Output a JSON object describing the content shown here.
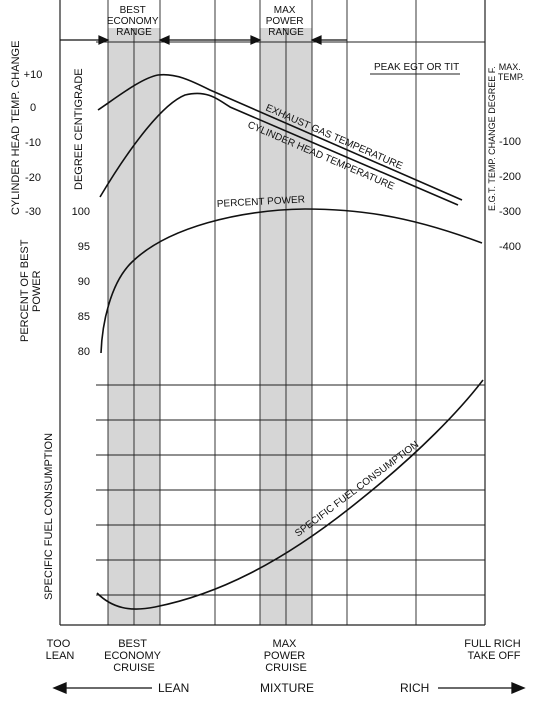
{
  "bands": {
    "economy_label": [
      "BEST",
      "ECONOMY",
      "RANGE"
    ],
    "power_label": [
      "MAX",
      "POWER",
      "RANGE"
    ]
  },
  "left_axis": {
    "cht_label": "CYLINDER HEAD TEMP. CHANGE",
    "cht_ticks": [
      "+10",
      "0",
      "-10",
      "-20",
      "-30"
    ],
    "degree_label": "DEGREE CENTIGRADE",
    "power_label_lines": [
      "PERCENT OF BEST",
      "POWER"
    ],
    "power_ticks": [
      "100",
      "95",
      "90",
      "85",
      "80"
    ],
    "sfc_label": "SPECIFIC FUEL CONSUMPTION"
  },
  "right_axis": {
    "max_temp_lines": [
      "MAX.",
      "TEMP."
    ],
    "egt_ticks": [
      "-100",
      "-200",
      "-300",
      "-400"
    ],
    "egt_label": "E.G.T. TEMP. CHANGE DEGREE F."
  },
  "curve_labels": {
    "peak": "PEAK EGT OR TIT",
    "egt": "EXHAUST GAS TEMPERATURE",
    "cht": "CYLINDER HEAD TEMPERATURE",
    "power": "PERCENT POWER",
    "sfc": "SPECIFIC FUEL CONSUMPTION"
  },
  "bottom_labels": {
    "too_lean": [
      "TOO",
      "LEAN"
    ],
    "best_economy": [
      "BEST",
      "ECONOMY",
      "CRUISE"
    ],
    "max_power": [
      "MAX",
      "POWER",
      "CRUISE"
    ],
    "full_rich": [
      "FULL RICH",
      "TAKE OFF"
    ]
  },
  "mixture_axis": {
    "lean": "LEAN",
    "mixture": "MIXTURE",
    "rich": "RICH"
  },
  "colors": {
    "line": "#111111",
    "band": "#d6d6d6",
    "grid": "#222222"
  }
}
